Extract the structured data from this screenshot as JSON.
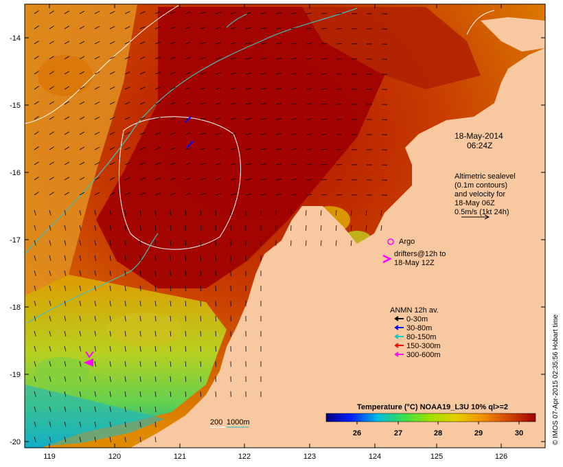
{
  "map": {
    "axes": {
      "lon_ticks": [
        "119",
        "120",
        "121",
        "122",
        "123",
        "124",
        "125",
        "126"
      ],
      "lat_ticks": [
        "-14",
        "-15",
        "-16",
        "-17",
        "-18",
        "-19",
        "-20"
      ]
    },
    "date_label": {
      "line1": "18-May-2014",
      "line2": "06:24Z"
    },
    "altimetry_note": {
      "line1": "Altimetric sealevel",
      "line2": "(0.1m contours)",
      "line3": "and velocity for",
      "line4": "18-May 06Z",
      "line5": "0.5m/s (1kt 24h)"
    },
    "legend": {
      "argo_label": "Argo",
      "drifter_line1": "drifters@12h to",
      "drifter_line2": "18-May 12Z",
      "anmn_title": "ANMN 12h av.",
      "anmn_items": [
        {
          "label": "0-30m",
          "color": "#000000"
        },
        {
          "label": "30-80m",
          "color": "#0000ff"
        },
        {
          "label": "80-150m",
          "color": "#00cccc"
        },
        {
          "label": "150-300m",
          "color": "#ff0000"
        },
        {
          "label": "300-600m",
          "color": "#ff00ff"
        }
      ]
    },
    "depth_label": {
      "text1": "200",
      "text2": "1000m"
    },
    "colorbar": {
      "title": "Temperature (°C) NOAA19_L3U 10% ql>=2",
      "ticks": [
        "26",
        "27",
        "28",
        "29",
        "30"
      ]
    },
    "credit": "© IMOS 07-Apr-2015 02:35:56 Hobart time",
    "colors": {
      "land": "#f8c8a0",
      "warm_dark": "#a00000",
      "warm": "#cc5500",
      "mid": "#e8a000",
      "cool": "#80d040",
      "cold": "#0050c0",
      "contour_white": "#ffffff",
      "isobath_cyan": "#40c0c0"
    }
  }
}
